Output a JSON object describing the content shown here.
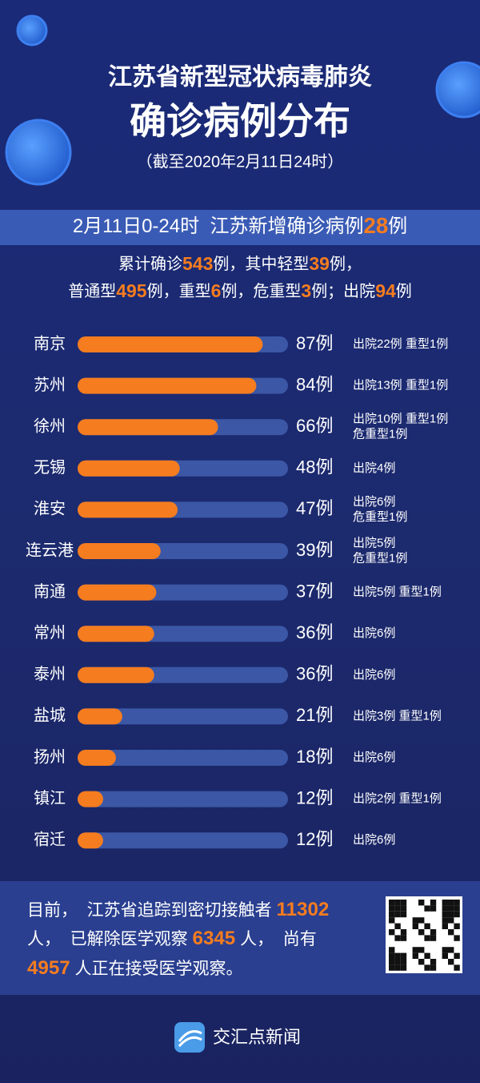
{
  "header": {
    "title": "江苏省新型冠状病毒肺炎",
    "subtitle": "确诊病例分布",
    "date": "（截至2020年2月11日24时）"
  },
  "banner": [
    {
      "text": "2月11日0-24时  江苏新增确诊病例"
    },
    {
      "text": "28",
      "highlight": true
    },
    {
      "text": "例"
    }
  ],
  "summary": [
    [
      {
        "text": "累计确诊"
      },
      {
        "text": "543",
        "highlight": true
      },
      {
        "text": "例，其中轻型"
      },
      {
        "text": "39",
        "highlight": true
      },
      {
        "text": "例，"
      }
    ],
    [
      {
        "text": "普通型"
      },
      {
        "text": "495",
        "highlight": true
      },
      {
        "text": "例，重型"
      },
      {
        "text": "6",
        "highlight": true
      },
      {
        "text": "例，危重型"
      },
      {
        "text": "3",
        "highlight": true
      },
      {
        "text": "例；出院"
      },
      {
        "text": "94",
        "highlight": true
      },
      {
        "text": "例"
      }
    ]
  ],
  "chart_data": {
    "type": "bar",
    "orientation": "horizontal",
    "categories": [
      "南京",
      "苏州",
      "徐州",
      "无锡",
      "淮安",
      "连云港",
      "南通",
      "常州",
      "泰州",
      "盐城",
      "扬州",
      "镇江",
      "宿迁"
    ],
    "values": [
      87,
      84,
      66,
      48,
      47,
      39,
      37,
      36,
      36,
      21,
      18,
      12,
      12
    ],
    "value_labels": [
      "87例",
      "84例",
      "66例",
      "48例",
      "47例",
      "39例",
      "37例",
      "36例",
      "36例",
      "21例",
      "18例",
      "12例",
      "12例"
    ],
    "notes": [
      [
        "出院22例 重型1例"
      ],
      [
        "出院13例 重型1例"
      ],
      [
        "出院10例 重型1例",
        "危重型1例"
      ],
      [
        "出院4例"
      ],
      [
        "出院6例",
        "危重型1例"
      ],
      [
        "出院5例",
        "危重型1例"
      ],
      [
        "出院5例 重型1例"
      ],
      [
        "出院6例"
      ],
      [
        "出院6例"
      ],
      [
        "出院3例 重型1例"
      ],
      [
        "出院6例"
      ],
      [
        "出院2例 重型1例"
      ],
      [
        "出院6例"
      ]
    ],
    "color": "#f57c1f",
    "track_color": "#3b57a6"
  },
  "footer": {
    "lines": [
      [
        {
          "text": "目前，  江苏省追踪到密切接触者 "
        },
        {
          "text": "11302",
          "highlight": true
        }
      ],
      [
        {
          "text": "人，  已解除医学观察 "
        },
        {
          "text": "6345",
          "highlight": true
        },
        {
          "text": " 人，  尚有"
        }
      ],
      [
        {
          "text": "4957",
          "highlight": true
        },
        {
          "text": " 人正在接受医学观察。"
        }
      ]
    ],
    "brand": "交汇点新闻"
  }
}
